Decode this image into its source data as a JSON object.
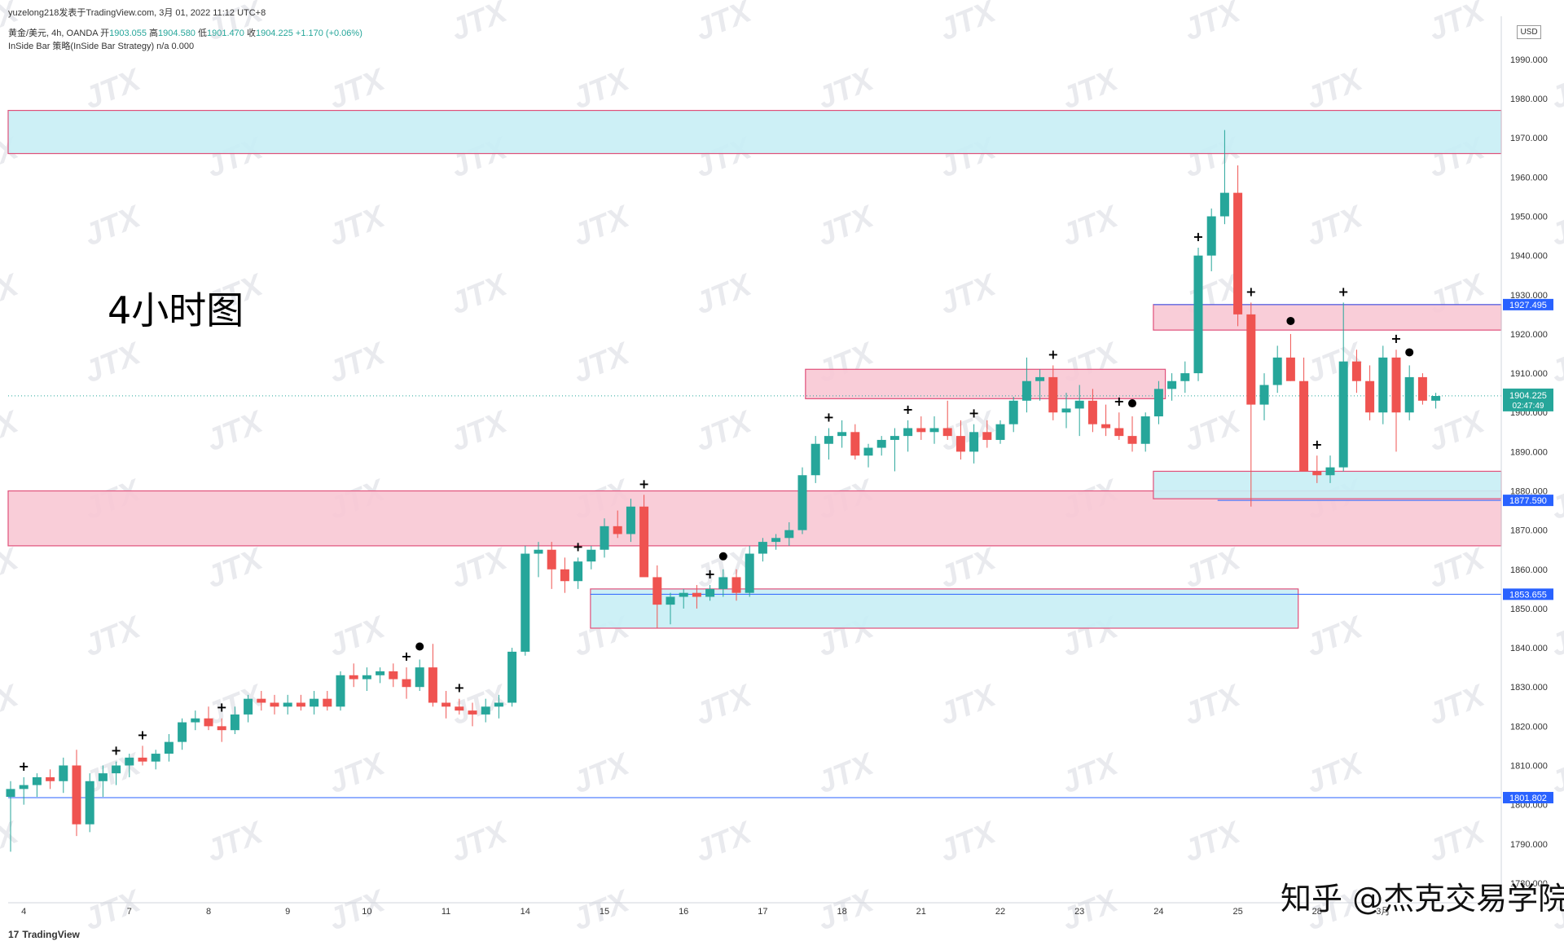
{
  "header": {
    "publish_line": "yuzelong218发表于TradingView.com,  3月 01, 2022 11:12 UTC+8",
    "symbol_line": "黄金/美元, 4h, OANDA",
    "open_label": "开",
    "open": "1903.055",
    "high_label": "高",
    "high": "1904.580",
    "low_label": "低",
    "low": "1901.470",
    "close_label": "收",
    "close": "1904.225",
    "change": "+1.170 (+0.06%)",
    "indicator_line": "InSide Bar 策略(InSide Bar Strategy)  n/a  0.000"
  },
  "overlay_title": "4小时图",
  "footer": {
    "logo_mark": "17",
    "logo": "TradingView"
  },
  "brand_watermark": "知乎 @杰克交易学院",
  "currency": "USD",
  "watermark_text": "JTX",
  "colors": {
    "up": "#26a69a",
    "down": "#ef5350",
    "supply_zone": "#f8c8d4",
    "supply_border": "#e0507a",
    "demand_zone": "#c8eef5",
    "hline": "#2962ff",
    "price_tag": "#2962ff",
    "current_tag": "#26a69a"
  },
  "chart_data": {
    "type": "candlestick",
    "ylim": [
      1775,
      2001
    ],
    "y_ticks": [
      1780,
      1790,
      1800,
      1810,
      1820,
      1830,
      1840,
      1850,
      1860,
      1870,
      1880,
      1890,
      1900,
      1910,
      1920,
      1930,
      1940,
      1950,
      1960,
      1970,
      1980,
      1990
    ],
    "x_tick_labels": [
      "4",
      "7",
      "8",
      "9",
      "10",
      "11",
      "14",
      "15",
      "16",
      "17",
      "18",
      "21",
      "22",
      "23",
      "24",
      "25",
      "28",
      "3月"
    ],
    "x_tick_candle_index": [
      1,
      9,
      15,
      21,
      27,
      33,
      39,
      45,
      51,
      57,
      63,
      69,
      75,
      81,
      87,
      93,
      99,
      104
    ],
    "candles": [
      [
        1802,
        1806,
        1788,
        1804
      ],
      [
        1804,
        1807,
        1800,
        1805
      ],
      [
        1805,
        1808,
        1802,
        1807
      ],
      [
        1807,
        1809,
        1804,
        1806
      ],
      [
        1806,
        1812,
        1803,
        1810
      ],
      [
        1810,
        1814,
        1792,
        1795
      ],
      [
        1795,
        1808,
        1793,
        1806
      ],
      [
        1806,
        1810,
        1802,
        1808
      ],
      [
        1808,
        1811,
        1805,
        1810
      ],
      [
        1810,
        1813,
        1807,
        1812
      ],
      [
        1812,
        1815,
        1810,
        1811
      ],
      [
        1811,
        1814,
        1809,
        1813
      ],
      [
        1813,
        1818,
        1811,
        1816
      ],
      [
        1816,
        1822,
        1814,
        1821
      ],
      [
        1821,
        1824,
        1819,
        1822
      ],
      [
        1822,
        1825,
        1819,
        1820
      ],
      [
        1820,
        1822,
        1816,
        1819
      ],
      [
        1819,
        1825,
        1818,
        1823
      ],
      [
        1823,
        1828,
        1821,
        1827
      ],
      [
        1827,
        1829,
        1824,
        1826
      ],
      [
        1826,
        1828,
        1823,
        1825
      ],
      [
        1825,
        1828,
        1823,
        1826
      ],
      [
        1826,
        1828,
        1824,
        1825
      ],
      [
        1825,
        1829,
        1823,
        1827
      ],
      [
        1827,
        1829,
        1824,
        1825
      ],
      [
        1825,
        1834,
        1824,
        1833
      ],
      [
        1833,
        1836,
        1830,
        1832
      ],
      [
        1832,
        1835,
        1829,
        1833
      ],
      [
        1833,
        1835,
        1831,
        1834
      ],
      [
        1834,
        1836,
        1830,
        1832
      ],
      [
        1832,
        1835,
        1827,
        1830
      ],
      [
        1830,
        1837,
        1829,
        1835
      ],
      [
        1835,
        1841,
        1825,
        1826
      ],
      [
        1826,
        1829,
        1822,
        1825
      ],
      [
        1825,
        1827,
        1823,
        1824
      ],
      [
        1824,
        1826,
        1820,
        1823
      ],
      [
        1823,
        1827,
        1821,
        1825
      ],
      [
        1825,
        1828,
        1822,
        1826
      ],
      [
        1826,
        1840,
        1825,
        1839
      ],
      [
        1839,
        1866,
        1838,
        1864
      ],
      [
        1864,
        1867,
        1858,
        1865
      ],
      [
        1865,
        1867,
        1855,
        1860
      ],
      [
        1860,
        1863,
        1854,
        1857
      ],
      [
        1857,
        1863,
        1855,
        1862
      ],
      [
        1862,
        1866,
        1860,
        1865
      ],
      [
        1865,
        1873,
        1863,
        1871
      ],
      [
        1871,
        1875,
        1868,
        1869
      ],
      [
        1869,
        1878,
        1867,
        1876
      ],
      [
        1876,
        1879,
        1860,
        1858
      ],
      [
        1858,
        1861,
        1845,
        1851
      ],
      [
        1851,
        1854,
        1846,
        1853
      ],
      [
        1853,
        1855,
        1850,
        1854
      ],
      [
        1854,
        1856,
        1850,
        1853
      ],
      [
        1853,
        1856,
        1852,
        1855
      ],
      [
        1855,
        1860,
        1853,
        1858
      ],
      [
        1858,
        1860,
        1852,
        1854
      ],
      [
        1854,
        1866,
        1853,
        1864
      ],
      [
        1864,
        1868,
        1862,
        1867
      ],
      [
        1867,
        1869,
        1865,
        1868
      ],
      [
        1868,
        1872,
        1866,
        1870
      ],
      [
        1870,
        1886,
        1869,
        1884
      ],
      [
        1884,
        1894,
        1882,
        1892
      ],
      [
        1892,
        1896,
        1888,
        1894
      ],
      [
        1894,
        1898,
        1891,
        1895
      ],
      [
        1895,
        1897,
        1888,
        1889
      ],
      [
        1889,
        1892,
        1886,
        1891
      ],
      [
        1891,
        1894,
        1889,
        1893
      ],
      [
        1893,
        1896,
        1885,
        1894
      ],
      [
        1894,
        1898,
        1890,
        1896
      ],
      [
        1896,
        1899,
        1893,
        1895
      ],
      [
        1895,
        1899,
        1892,
        1896
      ],
      [
        1896,
        1903,
        1893,
        1894
      ],
      [
        1894,
        1898,
        1888,
        1890
      ],
      [
        1890,
        1897,
        1887,
        1895
      ],
      [
        1895,
        1898,
        1891,
        1893
      ],
      [
        1893,
        1898,
        1892,
        1897
      ],
      [
        1897,
        1904,
        1895,
        1903
      ],
      [
        1903,
        1914,
        1900,
        1908
      ],
      [
        1908,
        1911,
        1903,
        1909
      ],
      [
        1909,
        1912,
        1898,
        1900
      ],
      [
        1900,
        1905,
        1896,
        1901
      ],
      [
        1901,
        1907,
        1894,
        1903
      ],
      [
        1903,
        1906,
        1895,
        1897
      ],
      [
        1897,
        1902,
        1894,
        1896
      ],
      [
        1896,
        1900,
        1893,
        1894
      ],
      [
        1894,
        1899,
        1890,
        1892
      ],
      [
        1892,
        1900,
        1890,
        1899
      ],
      [
        1899,
        1908,
        1897,
        1906
      ],
      [
        1906,
        1910,
        1903,
        1908
      ],
      [
        1908,
        1913,
        1905,
        1910
      ],
      [
        1910,
        1942,
        1908,
        1940
      ],
      [
        1940,
        1952,
        1936,
        1950
      ],
      [
        1950,
        1972,
        1948,
        1956
      ],
      [
        1956,
        1963,
        1922,
        1925
      ],
      [
        1925,
        1928,
        1876,
        1902
      ],
      [
        1902,
        1910,
        1898,
        1907
      ],
      [
        1907,
        1917,
        1905,
        1914
      ],
      [
        1914,
        1920,
        1908,
        1908
      ],
      [
        1908,
        1914,
        1886,
        1885
      ],
      [
        1885,
        1889,
        1882,
        1884
      ],
      [
        1884,
        1889,
        1882,
        1886
      ],
      [
        1886,
        1928,
        1885,
        1913
      ],
      [
        1913,
        1916,
        1905,
        1908
      ],
      [
        1908,
        1912,
        1898,
        1900
      ],
      [
        1900,
        1917,
        1897,
        1914
      ],
      [
        1914,
        1916,
        1890,
        1900
      ],
      [
        1900,
        1912,
        1898,
        1909
      ],
      [
        1909,
        1910,
        1902,
        1903
      ],
      [
        1903,
        1905,
        1901,
        1904.2
      ]
    ],
    "plus_markers": [
      1,
      8,
      10,
      16,
      30,
      34,
      43,
      48,
      53,
      62,
      68,
      73,
      79,
      84,
      90,
      94,
      99,
      101,
      105
    ],
    "dot_markers": [
      31,
      54,
      85,
      97,
      106
    ],
    "zones": [
      {
        "kind": "demand",
        "y_top": 1977,
        "y_bottom": 1966,
        "x_from": 0,
        "x_to": 1
      },
      {
        "kind": "supply",
        "y_top": 1880,
        "y_bottom": 1866,
        "x_from": 0,
        "x_to": 1
      },
      {
        "kind": "supply",
        "y_top": 1911,
        "y_bottom": 1903.5,
        "x_from": 0.534,
        "x_to": 0.775
      },
      {
        "kind": "supply",
        "y_top": 1927.5,
        "y_bottom": 1921,
        "x_from": 0.767,
        "x_to": 1
      },
      {
        "kind": "demand",
        "y_top": 1855,
        "y_bottom": 1845,
        "x_from": 0.39,
        "x_to": 0.864
      },
      {
        "kind": "demand",
        "y_top": 1885,
        "y_bottom": 1878,
        "x_from": 0.767,
        "x_to": 1
      }
    ],
    "horizontal_levels": [
      {
        "price": 1927.495,
        "label": "1927.495",
        "x_from": 0.767
      },
      {
        "price": 1877.59,
        "label": "1877.590",
        "x_from": 0.81
      },
      {
        "price": 1853.655,
        "label": "1853.655",
        "x_from": 0.39
      },
      {
        "price": 1801.802,
        "label": "1801.802",
        "x_from": 0
      }
    ],
    "current_price": {
      "price": 1904.225,
      "label": "1904.225",
      "countdown": "02:47:49"
    }
  }
}
